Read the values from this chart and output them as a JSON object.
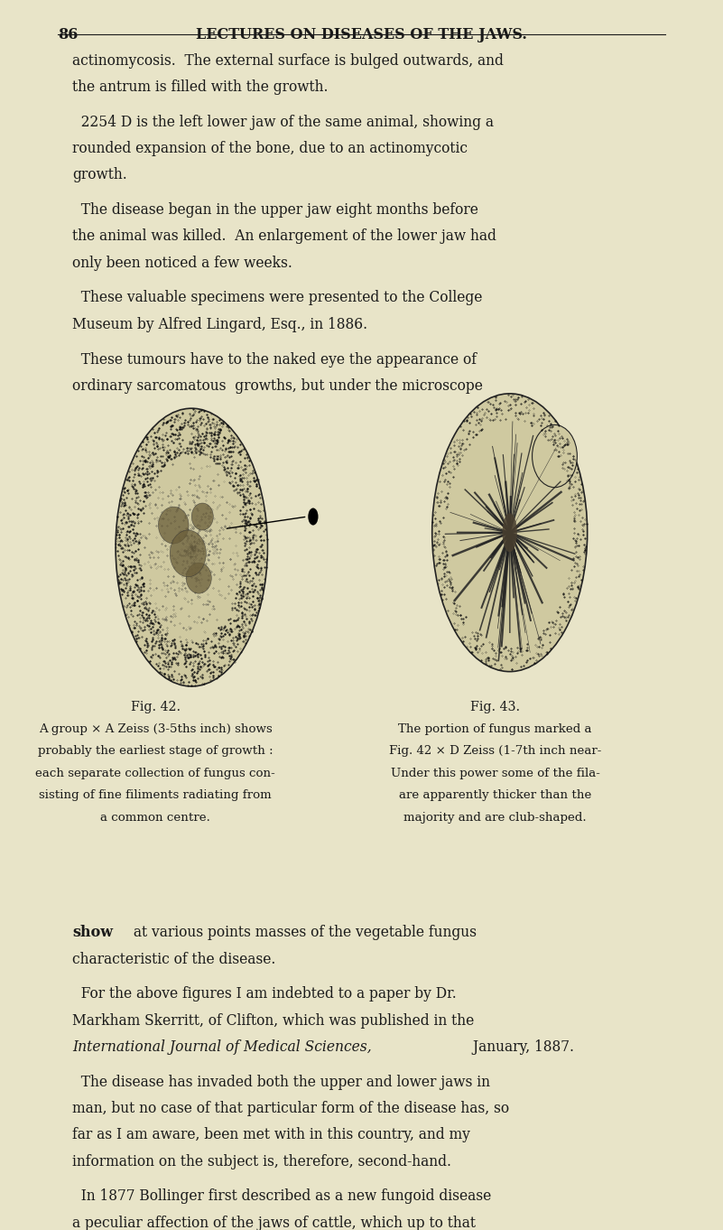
{
  "bg_color": "#e8e4c8",
  "text_color": "#1a1a1a",
  "page_number": "86",
  "header": "LECTURES ON DISEASES OF THE JAWS.",
  "fig42_caption_title": "Fig. 42.",
  "fig42_caption_lines": [
    "A group × A Zeiss (3-5ths inch) shows",
    "probably the earliest stage of growth :",
    "each separate collection of fungus con-",
    "sisting of fine filiments radiating from",
    "a common centre."
  ],
  "fig43_caption_title": "Fig. 43.",
  "fig43_caption_lines": [
    "The portion of fungus marked a",
    "Fig. 42 × D Zeiss (1-7th inch near-",
    "Under this power some of the fila-",
    "are apparently thicker than the",
    "majority and are club-shaped."
  ]
}
